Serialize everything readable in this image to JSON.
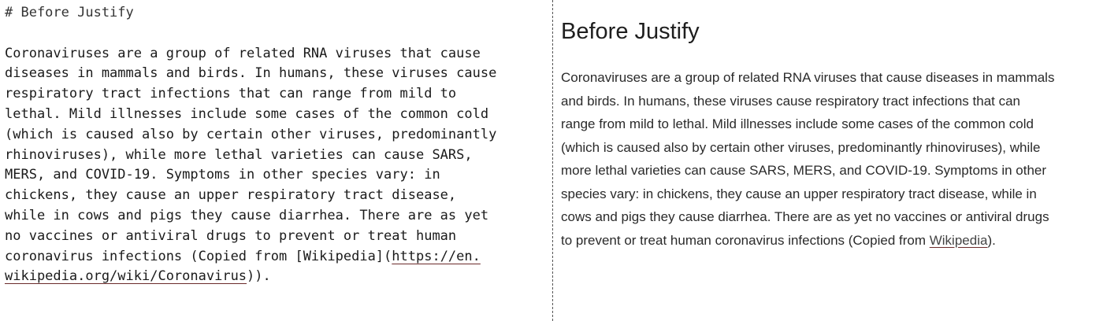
{
  "editor": {
    "heading": "# Before Justify",
    "lines": [
      "Coronaviruses are a group of related RNA viruses that cause",
      "diseases in mammals and birds. In humans, these viruses cause",
      "respiratory tract infections that can range from mild to",
      "lethal. Mild illnesses include some cases of the common cold",
      "(which is caused also by certain other viruses, predominantly",
      "rhinoviruses), while more lethal varieties can cause SARS,",
      "MERS, and COVID-19. Symptoms in other species vary: in",
      "chickens, they cause an upper respiratory tract disease,",
      "while in cows and pigs they cause diarrhea. There are as yet",
      "no vaccines or antiviral drugs to prevent or treat human"
    ],
    "line11_prefix": "coronavirus infections (Copied from [Wikipedia](",
    "line11_url": "https://en.",
    "line12_url": "wikipedia.org/wiki/Coronavirus",
    "line12_suffix": "))."
  },
  "preview": {
    "title": "Before Justify",
    "lines": [
      "Coronaviruses are a group of related RNA viruses that cause diseases in mammals",
      "and birds. In humans, these viruses cause respiratory tract infections that can",
      "range from mild to lethal. Mild illnesses include some cases of the common cold",
      "(which is caused also by certain other viruses, predominantly rhinoviruses), while",
      "more lethal varieties can cause SARS, MERS, and COVID-19. Symptoms in other",
      "species vary: in chickens, they cause an upper respiratory tract disease, while in",
      "cows and pigs they cause diarrhea. There are as yet no vaccines or antiviral drugs"
    ],
    "last_line_prefix": "to prevent or treat human coronavirus infections (Copied from ",
    "link_text": "Wikipedia",
    "last_line_suffix": ")."
  }
}
